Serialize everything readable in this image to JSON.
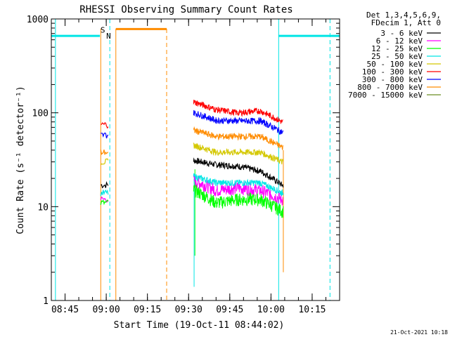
{
  "chart_data": {
    "type": "line",
    "title": "RHESSI Observing Summary Count Rates",
    "xlabel": "Start Time (19-Oct-11 08:44:02)",
    "ylabel": "Count Rate (s⁻¹ detector⁻¹)",
    "yscale": "log",
    "ylim": [
      1,
      1000
    ],
    "xlim_minutes_after_0844": [
      -4,
      101
    ],
    "x_ticks": [
      {
        "label": "08:45",
        "min": 1
      },
      {
        "label": "09:00",
        "min": 16
      },
      {
        "label": "09:15",
        "min": 31
      },
      {
        "label": "09:30",
        "min": 46
      },
      {
        "label": "09:45",
        "min": 61
      },
      {
        "label": "10:00",
        "min": 76
      },
      {
        "label": "10:15",
        "min": 91
      }
    ],
    "y_ticks": [
      {
        "label": "1",
        "value": 1
      },
      {
        "label": "10",
        "value": 10
      },
      {
        "label": "100",
        "value": 100
      },
      {
        "label": "1000",
        "value": 1000
      }
    ],
    "legend_header": [
      "Det 1,3,4,5,6,9,",
      "FDecim 1, Att 0"
    ],
    "series": [
      {
        "name": "3 - 6 keV",
        "color": "#000000",
        "seg1_level": 17,
        "seg2_x": [
          48,
          56,
          64,
          72,
          80
        ],
        "seg2_y": [
          31,
          28,
          27,
          24,
          17
        ]
      },
      {
        "name": "6 - 12 keV",
        "color": "#ff00ff",
        "seg1_level": 12,
        "seg2_x": [
          48,
          56,
          64,
          72,
          80
        ],
        "seg2_y": [
          19,
          15,
          16,
          15,
          12
        ]
      },
      {
        "name": "12 - 25 keV",
        "color": "#00ff00",
        "seg1_level": 11,
        "seg2_x": [
          48,
          56,
          64,
          72,
          80
        ],
        "seg2_y": [
          15,
          11,
          12,
          12,
          9
        ]
      },
      {
        "name": "25 - 50 keV",
        "color": "#00e5e5",
        "seg1_level": 14,
        "seg2_x": [
          48,
          56,
          64,
          72,
          80
        ],
        "seg2_y": [
          21,
          18,
          18,
          18,
          14
        ]
      },
      {
        "name": "50 - 100 keV",
        "color": "#d4c800",
        "seg1_level": 30,
        "seg2_x": [
          48,
          56,
          64,
          72,
          80
        ],
        "seg2_y": [
          45,
          38,
          38,
          38,
          30
        ]
      },
      {
        "name": "100 - 300 keV",
        "color": "#ff0000",
        "seg1_level": 75,
        "seg2_x": [
          48,
          56,
          64,
          72,
          80
        ],
        "seg2_y": [
          130,
          108,
          100,
          105,
          80
        ]
      },
      {
        "name": "300 - 800 keV",
        "color": "#0000ff",
        "seg1_level": 58,
        "seg2_x": [
          48,
          56,
          64,
          72,
          80
        ],
        "seg2_y": [
          100,
          83,
          82,
          82,
          62
        ]
      },
      {
        "name": "800 - 7000 keV",
        "color": "#ff8c00",
        "seg1_level": 38,
        "seg2_x": [
          48,
          56,
          64,
          72,
          80
        ],
        "seg2_y": [
          65,
          56,
          56,
          56,
          43
        ]
      },
      {
        "name": "7000 - 15000 keV",
        "color": "#6b8e23",
        "seg1_level": null,
        "seg2_x": [],
        "seg2_y": []
      }
    ],
    "data_segments_minutes": [
      [
        14.0,
        17.0
      ],
      [
        47.8,
        80.5
      ]
    ],
    "saa_flag_level": 660,
    "saa_intervals_minutes": [
      [
        -4,
        13.7
      ],
      [
        78.8,
        101
      ]
    ],
    "saa_label": "S",
    "night_flag_level": 780,
    "night_interval_minutes": [
      19.5,
      38.0
    ],
    "night_label": "N",
    "cyan_solid_lines_minutes": [
      -2.5,
      78.8
    ],
    "cyan_dashed_lines_minutes": [
      17.3,
      97.5
    ],
    "orange_solid_lines_minutes": [
      14.0,
      19.5
    ],
    "orange_dashed_lines_minutes": [
      38.0
    ],
    "orange_stub_minutes": [
      80.5
    ],
    "dips_minutes": [
      [
        48.3,
        3
      ],
      [
        48.0,
        1.4
      ]
    ],
    "footer_date": "21-Oct-2021 10:18"
  }
}
